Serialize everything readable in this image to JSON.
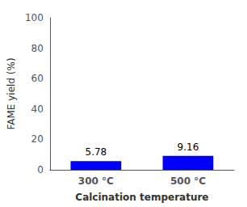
{
  "chart_data": {
    "type": "bar",
    "categories": [
      "300 °C",
      "500 °C"
    ],
    "values": [
      5.78,
      9.16
    ],
    "color": "#0000FF",
    "xlabel": "Calcination temperature",
    "ylabel": "FAME yield (%)",
    "ylim": [
      0,
      100
    ],
    "yticks": [
      0,
      20,
      40,
      60,
      80,
      100
    ],
    "grid": false,
    "data_labels": true
  }
}
